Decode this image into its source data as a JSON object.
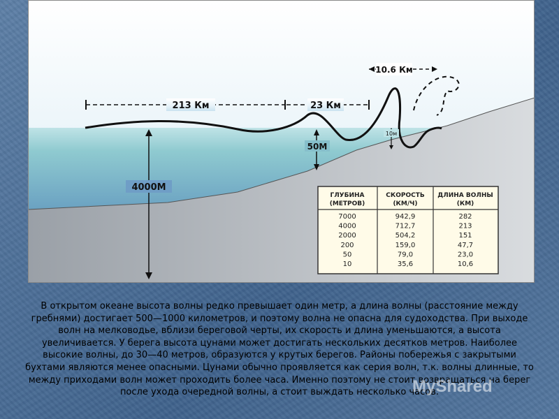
{
  "diagram": {
    "labels": {
      "dist_213": "213 Км",
      "dist_23": "23 Км",
      "dist_10_6": "10.6 Км",
      "depth_4000": "4000М",
      "depth_50": "50М",
      "depth_10": "10м"
    },
    "table": {
      "headers": [
        "ГЛУБИНА (МЕТРОВ)",
        "СКОРОСТЬ (КМ/Ч)",
        "ДЛИНА ВОЛНЫ (КМ)"
      ],
      "rows": [
        [
          "7000",
          "942,9",
          "282"
        ],
        [
          "4000",
          "712,7",
          "213"
        ],
        [
          "2000",
          "504,2",
          "151"
        ],
        [
          "200",
          "159,0",
          "47,7"
        ],
        [
          "50",
          "79,0",
          "23,0"
        ],
        [
          "10",
          "35,6",
          "10,6"
        ]
      ]
    }
  },
  "text": "В открытом океане высота волны редко превышает один метр, а длина волны (расстояние между гребнями) достигает 500—1000 километров, и поэтому волна не опасна для судоходства. При выходе волн на мелководье, вблизи береговой черты, их скорость и длина уменьшаются, а высота увеличивается. У берега высота цунами может достигать нескольких десятков метров. Наиболее высокие волны, до 30—40 метров, образуются у крутых берегов. Районы побережья с закрытыми бухтами являются менее опасными. Цунами обычно проявляется как серия волн, т.к. волны длинные, то между приходами волн может проходить более часа. Именно поэтому не стоит возвращаться на берег после ухода очередной волны, а стоит выждать несколько часов.",
  "watermark": "MyShared"
}
